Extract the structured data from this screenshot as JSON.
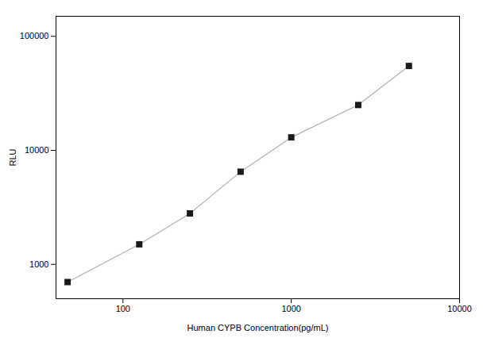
{
  "chart_data": {
    "type": "line",
    "xlabel": "Human CYPB Concentration(pg/mL)",
    "ylabel": "RLU",
    "x": [
      46.875,
      125,
      250,
      500,
      1000,
      2500,
      5000
    ],
    "values": [
      700,
      1500,
      2800,
      6500,
      13000,
      25000,
      55000
    ],
    "color": "#b0b0b0",
    "marker": "square",
    "colors": [
      "#1a1a1a",
      "#1a1a1a",
      "#1a1a1a",
      "#1a1a1a",
      "#1a1a1a",
      "#1a1a1a",
      "#1a1a1a"
    ],
    "log": true,
    "xlim": [
      40,
      10000
    ],
    "ylim": [
      500,
      150000
    ],
    "xticks": [
      100,
      1000,
      10000
    ],
    "yticks": [
      1000,
      10000,
      100000
    ],
    "grid": false
  }
}
